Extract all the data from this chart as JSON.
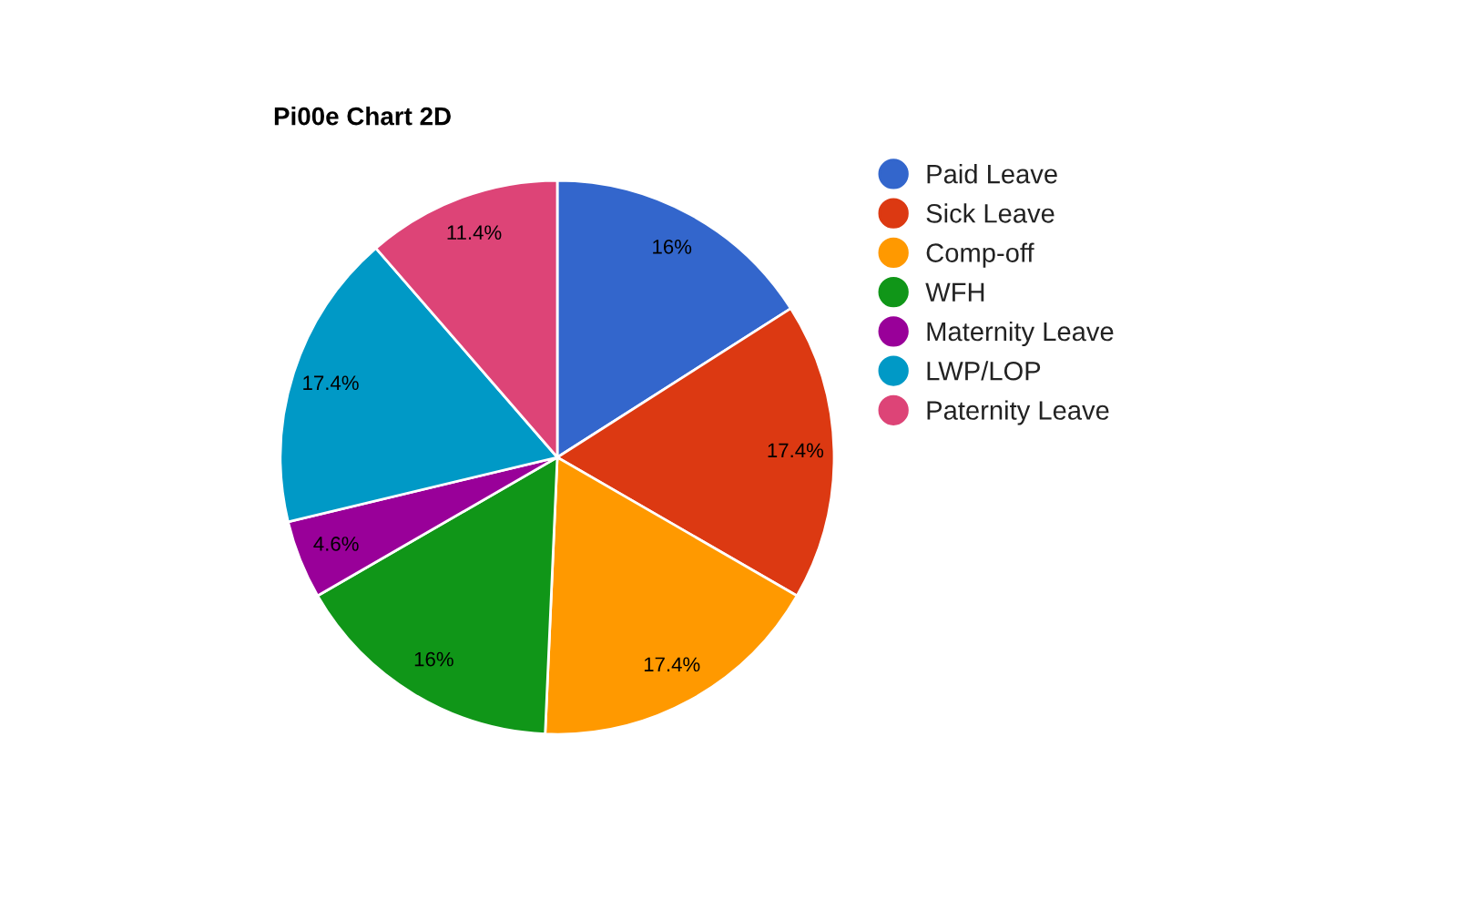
{
  "chart_data": {
    "type": "pie",
    "title": "Pi00e Chart 2D",
    "categories": [
      "Paid Leave",
      "Sick Leave",
      "Comp-off",
      "WFH",
      "Maternity Leave",
      "LWP/LOP",
      "Paternity Leave"
    ],
    "values": [
      16,
      17.4,
      17.4,
      16,
      4.6,
      17.4,
      11.4
    ],
    "value_labels": [
      "16%",
      "17.4%",
      "17.4%",
      "16%",
      "4.6%",
      "17.4%",
      "11.4%"
    ],
    "colors": [
      "#3366cc",
      "#dc3912",
      "#ff9900",
      "#109618",
      "#990099",
      "#0099c6",
      "#dd4477"
    ],
    "legend": "top right"
  }
}
